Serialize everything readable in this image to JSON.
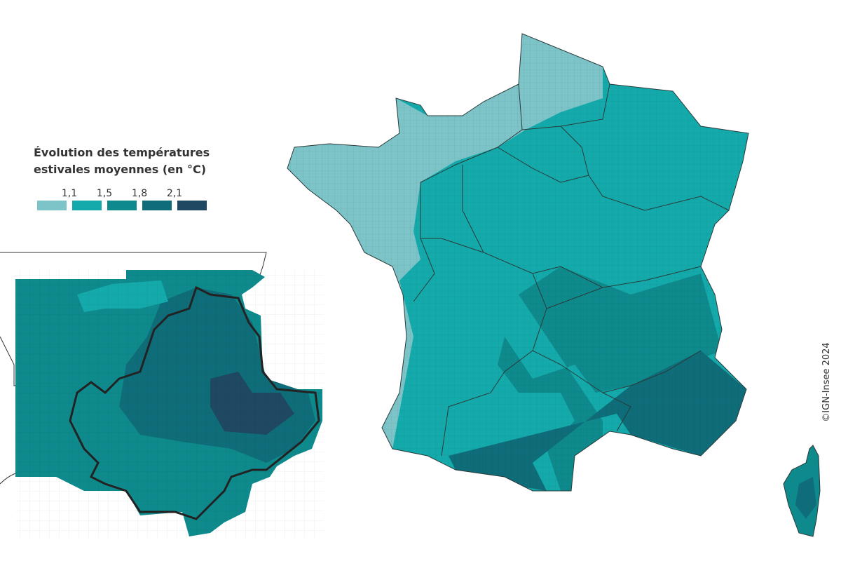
{
  "legend": {
    "title_lines": [
      "Évolution des températures",
      "estivales moyennes (en °C)"
    ],
    "breaks": [
      "1,1",
      "1,5",
      "1,8",
      "2,1"
    ],
    "colors": [
      "#7cc4c8",
      "#14aaab",
      "#0f8a8c",
      "#0f6d79",
      "#1f4862"
    ]
  },
  "credit": "©IGN-Insee 2024"
}
